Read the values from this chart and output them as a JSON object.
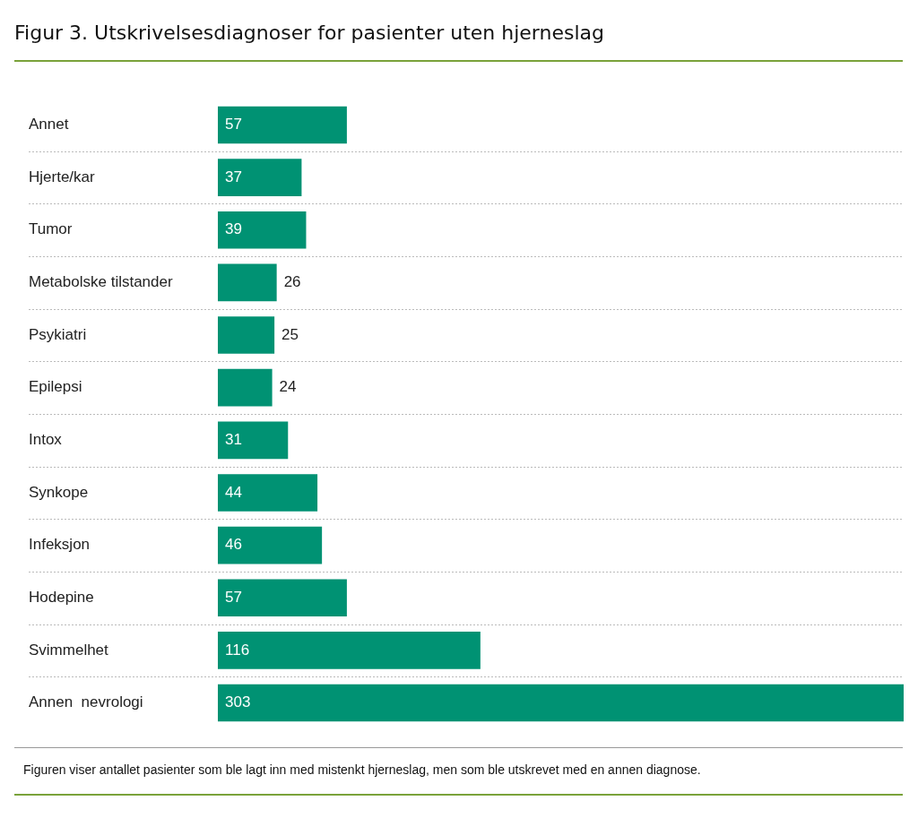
{
  "chart_data": {
    "type": "bar",
    "orientation": "horizontal",
    "title": "Figur 3. Utskrivelsesdiagnoser for pasienter uten hjerneslag",
    "categories": [
      "Annet",
      "Hjerte/kar",
      "Tumor",
      "Metabolske tilstander",
      "Psykiatri",
      "Epilepsi",
      "Intox",
      "Synkope",
      "Infeksjon",
      "Hodepine",
      "Svimmelhet",
      "Annen  nevrologi"
    ],
    "values": [
      57,
      37,
      39,
      26,
      25,
      24,
      31,
      44,
      46,
      57,
      116,
      303
    ],
    "color": "#009273",
    "data_labels": true,
    "grid": "y",
    "legend": false,
    "annotations": [
      "Figuren viser antallet pasienter som ble lagt inn med mistenkt hjerneslag, men som ble utskrevet med en annen diagnose."
    ]
  }
}
